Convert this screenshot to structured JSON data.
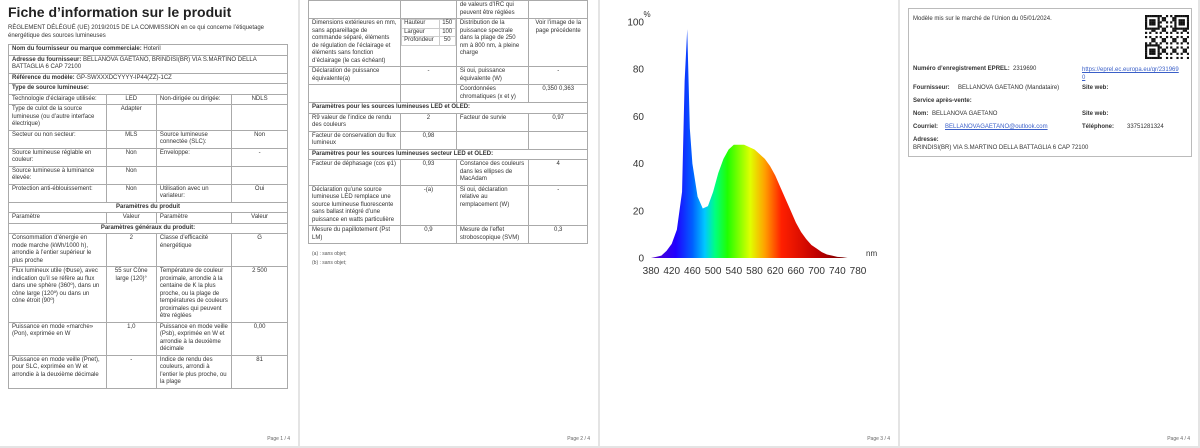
{
  "sheet": {
    "title": "Fiche d’information sur le produit",
    "regulation": "RÈGLEMENT DÉLÉGUÉ (UE) 2019/2015 DE LA COMMISSION en ce qui concerne l’étiquetage énergétique des sources lumineuses",
    "rows1": [
      {
        "label": "Nom du fournisseur ou marque commerciale:",
        "value": "Hoteril"
      },
      {
        "label": "Adresse du fournisseur:",
        "value": "BELLANOVA GAETANO, BRINDISI(BR) VIA S.MARTINO DELLA BATTAGLIA 6 CAP 72100"
      },
      {
        "label": "Référence du modèle:",
        "value": "GP-SWXXXDCYYYY-IP44(ZZ)-1CZ"
      },
      {
        "section": "Type de source lumineuse:"
      },
      {
        "cells": [
          "Technologie d’éclairage utilisée:",
          "LED",
          "Non-dirigée ou dirigée:",
          "NDLS"
        ]
      },
      {
        "cells": [
          "Type de culot de la source lumineuse (ou d’autre interface électrique)",
          "Adapter",
          null,
          null
        ]
      },
      {
        "cells": [
          "Secteur ou non secteur:",
          "MLS",
          "Source lumineuse connectée (SLC):",
          "Non"
        ]
      },
      {
        "cells": [
          "Source lumineuse réglable en couleur:",
          "Non",
          "Enveloppe:",
          "-"
        ]
      },
      {
        "cells": [
          "Source lumineuse à luminance élevée:",
          "Non",
          null,
          null
        ]
      },
      {
        "cells": [
          "Protection anti-éblouissement:",
          "Non",
          "Utilisation avec un variateur:",
          "Oui"
        ]
      },
      {
        "heading": "Paramètres du produit"
      },
      {
        "cells": [
          "Paramètre",
          "Valeur",
          "Paramètre",
          "Valeur"
        ]
      },
      {
        "heading": "Paramètres généraux du produit:"
      },
      {
        "cells": [
          "Consommation d’énergie en mode marche (kWh/1000 h), arrondie à l’entier supérieur le plus proche",
          "2",
          "Classe d’efficacité énergétique",
          "G"
        ]
      },
      {
        "cells": [
          "Flux lumineux utile (Φuse), avec indication qu’il se réfère au flux dans une sphère (360º), dans un cône large (120º) ou dans un cône étroit (90º)",
          "55 sur Cône large (120)°",
          "Température de couleur proximale, arrondie à la centaine de K la plus proche, ou la plage de températures de couleurs proximales qui peuvent être réglées",
          "2 500"
        ]
      },
      {
        "cells": [
          "Puissance en mode «marche» (Pon), exprimée en W",
          "1,0",
          "Puissance en mode veille (Psb), exprimée en W et arrondie à la deuxième décimale",
          "0,00"
        ]
      },
      {
        "cells": [
          "Puissance en mode veille (Pnet), pour SLC, exprimée en W et arrondie à la deuxième décimale",
          "-",
          "Indice de rendu des couleurs, arrondi à l’entier le plus proche, ou la plage",
          "81"
        ]
      }
    ],
    "rows2": [
      {
        "cells": [
          null,
          null,
          "de valeurs d’IRC qui peuvent être réglées",
          null
        ]
      },
      {
        "cells": [
          "Dimensions extérieures en mm, sans appareillage de commande séparé, éléments de régulation de l’éclairage et éléments sans fonction d’éclairage (le cas échéant)",
          {
            "dims": [
              {
                "label": "Hauteur",
                "value": "150"
              },
              {
                "label": "Largeur",
                "value": "100"
              },
              {
                "label": "Profondeur",
                "value": "50"
              }
            ]
          },
          "Distribution de la puissance spectrale dans la plage de 250 nm à 800 nm, à pleine charge",
          "Voir l’image de la page précédente"
        ]
      },
      {
        "cells": [
          "Déclaration de puissance équivalente(a)",
          "-",
          "Si oui, puissance équivalente (W)",
          "-"
        ]
      },
      {
        "cells": [
          null,
          null,
          "Coordonnées chromatiques (x et y)",
          "0,350 0,363"
        ]
      },
      {
        "section": "Paramètres pour les sources lumineuses LED et OLED:"
      },
      {
        "cells": [
          "R9 valeur de l’indice de rendu des couleurs",
          "2",
          "Facteur de survie",
          "0,97"
        ]
      },
      {
        "cells": [
          "Facteur de conservation du flux lumineux",
          "0,98",
          null,
          null
        ]
      },
      {
        "section": "Paramètres pour les sources lumineuses secteur LED et OLED:"
      },
      {
        "cells": [
          "Facteur de déphasage (cos φ1)",
          "0,93",
          "Constance des couleurs dans les ellipses de MacAdam",
          "4"
        ]
      },
      {
        "cells": [
          "Déclaration qu’une source lumineuse LED remplace une source lumineuse fluorescente sans ballast intégré d’une puissance en watts particulière",
          "-(a)",
          "Si oui, déclaration relative au remplacement (W)",
          "-"
        ]
      },
      {
        "cells": [
          "Mesure du papillotement (Pst LM)",
          "0,9",
          "Mesure de l’effet stroboscopique (SVM)",
          "0,3"
        ]
      }
    ],
    "notes": [
      "(a) : sans objet;",
      "(b) : sans objet;"
    ]
  },
  "spectrum": {
    "type": "area",
    "ylabel": "%",
    "xlabel": "nm",
    "x": [
      380,
      390,
      400,
      410,
      420,
      430,
      440,
      445,
      450,
      455,
      460,
      470,
      480,
      490,
      500,
      510,
      520,
      530,
      540,
      550,
      560,
      570,
      580,
      590,
      600,
      610,
      620,
      630,
      640,
      650,
      660,
      670,
      680,
      690,
      700,
      710,
      720,
      730,
      740,
      750,
      760,
      770,
      780
    ],
    "values": [
      0,
      0.5,
      1,
      3,
      6,
      12,
      28,
      75,
      97,
      55,
      40,
      26,
      21,
      22,
      28,
      36,
      42,
      46,
      48,
      48,
      48,
      47,
      46,
      44,
      42,
      39,
      35,
      30,
      25,
      20,
      15,
      11,
      8,
      5.5,
      4,
      2.5,
      1.5,
      1,
      0.5,
      0.3,
      0,
      0,
      0
    ],
    "xlim": [
      380,
      780
    ],
    "ylim": [
      0,
      100
    ],
    "xticks": [
      380,
      420,
      460,
      500,
      540,
      580,
      620,
      660,
      700,
      740,
      780
    ],
    "yticks": [
      0,
      20,
      40,
      60,
      80,
      100
    ]
  },
  "eprel": {
    "market": "Modèle mis sur le marché de l’Union du 05/01/2024.",
    "reg_label": "Numéro d’enregistrement EPREL:",
    "reg_value": "2319690",
    "link": "https://eprel.ec.europa.eu/qr/2319690",
    "supplier_label": "Fournisseur:",
    "supplier_value": "BELLANOVA GAETANO (Mandataire)",
    "web_label": "Site web:",
    "service_label": "Service après-vente:",
    "name_label": "Nom:",
    "name_value": "BELLANOVA GAETANO",
    "web2_label": "Site web:",
    "mail_label": "Courriel:",
    "mail_value": "BELLANOVAGAETANO@outlook.com",
    "phone_label": "Téléphone:",
    "phone_value": "33751281324",
    "address_label": "Adresse:",
    "address_value": "BRINDISI(BR) VIA S.MARTINO DELLA BATTAGLIA 6 CAP 72100"
  },
  "footers": [
    "Page 1 / 4",
    "Page 2 / 4",
    "Page 3 / 4",
    "Page 4 / 4"
  ]
}
